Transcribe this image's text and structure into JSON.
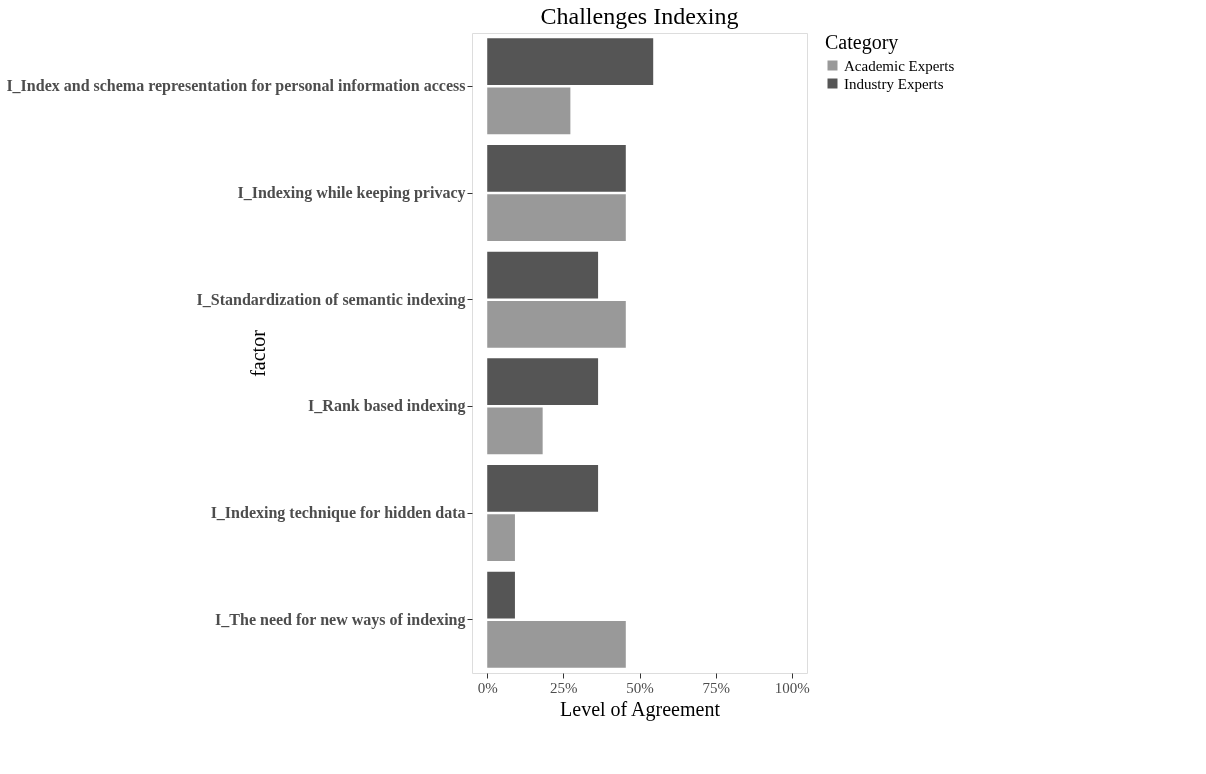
{
  "chart_data": {
    "type": "bar",
    "orientation": "horizontal",
    "title": "Challenges Indexing",
    "xlabel": "Level of Agreement",
    "ylabel": "factor",
    "legend_title": "Category",
    "categories": [
      "I_Index and schema representation for personal information access",
      "I_Indexing while keeping privacy",
      "I_Standardization of semantic indexing",
      "I_Rank based indexing",
      "I_Indexing technique for hidden data",
      "I_The need for new ways of indexing"
    ],
    "series": [
      {
        "name": "Academic Experts",
        "color": "#999999",
        "values": [
          27.3,
          45.5,
          45.5,
          18.2,
          9.1,
          45.5
        ]
      },
      {
        "name": "Industry Experts",
        "color": "#555555",
        "values": [
          54.5,
          45.5,
          36.4,
          36.4,
          36.4,
          9.1
        ]
      }
    ],
    "xlim": [
      -5,
      105
    ],
    "xticks": [
      {
        "value": 0,
        "label": "0%"
      },
      {
        "value": 25,
        "label": "25%"
      },
      {
        "value": 50,
        "label": "50%"
      },
      {
        "value": 75,
        "label": "75%"
      },
      {
        "value": 100,
        "label": "100%"
      }
    ],
    "grid": false,
    "legend": "right"
  }
}
